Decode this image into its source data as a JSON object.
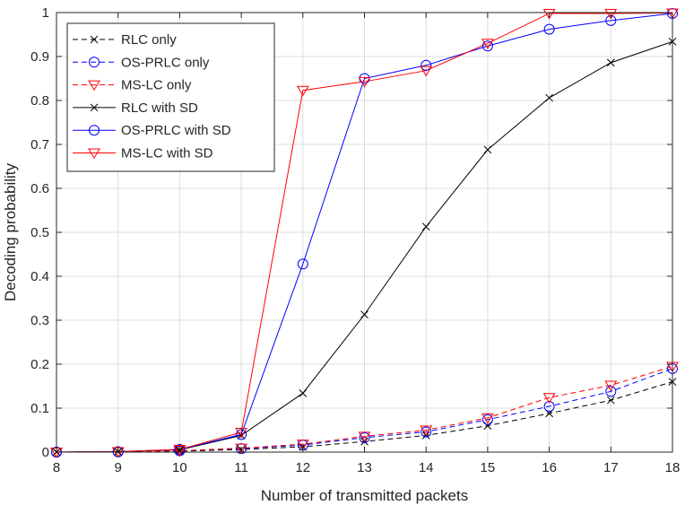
{
  "chart_data": {
    "type": "line",
    "title": "",
    "xlabel": "Number of transmitted packets",
    "ylabel": "Decoding probability",
    "xlim": [
      8,
      18
    ],
    "ylim": [
      0,
      1
    ],
    "xticks": [
      8,
      9,
      10,
      11,
      12,
      13,
      14,
      15,
      16,
      17,
      18
    ],
    "yticks": [
      0,
      0.1,
      0.2,
      0.3,
      0.4,
      0.5,
      0.6,
      0.7,
      0.8,
      0.9,
      1
    ],
    "ytick_labels": [
      "0",
      "0.1",
      "0.2",
      "0.3",
      "0.4",
      "0.5",
      "0.6",
      "0.7",
      "0.8",
      "0.9",
      "1"
    ],
    "grid": true,
    "legend_position": "top-left",
    "x": [
      8,
      9,
      10,
      11,
      12,
      13,
      14,
      15,
      16,
      17,
      18
    ],
    "series": [
      {
        "name": "RLC only",
        "color": "#000000",
        "dash": "dashed",
        "marker": "x",
        "values": [
          0.0,
          0.0005,
          0.002,
          0.006,
          0.012,
          0.024,
          0.038,
          0.06,
          0.088,
          0.118,
          0.16
        ]
      },
      {
        "name": "OS-PRLC only",
        "color": "#0000ff",
        "dash": "dashed",
        "marker": "circle",
        "values": [
          0.0,
          0.0006,
          0.003,
          0.008,
          0.016,
          0.033,
          0.046,
          0.074,
          0.104,
          0.138,
          0.19
        ]
      },
      {
        "name": "MS-LC only",
        "color": "#ff0000",
        "dash": "dashed",
        "marker": "triangle-down",
        "values": [
          0.0,
          0.0008,
          0.003,
          0.009,
          0.018,
          0.036,
          0.05,
          0.078,
          0.124,
          0.152,
          0.195
        ]
      },
      {
        "name": "RLC with SD",
        "color": "#000000",
        "dash": "solid",
        "marker": "x",
        "values": [
          0.0,
          0.001,
          0.005,
          0.038,
          0.134,
          0.313,
          0.513,
          0.688,
          0.806,
          0.886,
          0.934
        ]
      },
      {
        "name": "OS-PRLC with SD",
        "color": "#0000ff",
        "dash": "solid",
        "marker": "circle",
        "values": [
          0.0,
          0.001,
          0.006,
          0.04,
          0.428,
          0.85,
          0.88,
          0.924,
          0.962,
          0.982,
          0.998
        ]
      },
      {
        "name": "MS-LC with SD",
        "color": "#ff0000",
        "dash": "solid",
        "marker": "triangle-down",
        "values": [
          0.0,
          0.001,
          0.006,
          0.045,
          0.823,
          0.843,
          0.868,
          0.93,
          0.998,
          0.998,
          0.999
        ]
      }
    ]
  }
}
